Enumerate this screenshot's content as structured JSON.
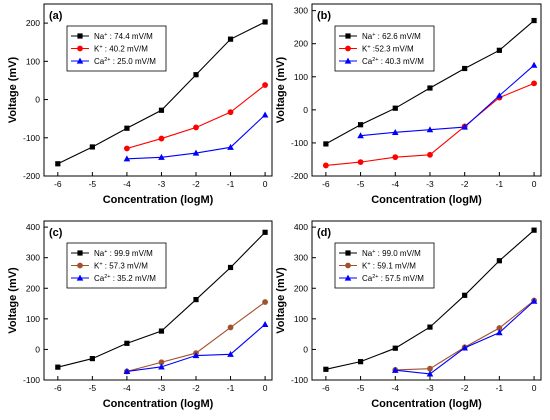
{
  "chart_data": [
    {
      "panel_label": "(a)",
      "type": "line",
      "xlabel": "Concentration (logM)",
      "ylabel": "Voltage (mV)",
      "xlim": [
        -6.4,
        0.2
      ],
      "ylim": [
        -200,
        250
      ],
      "xticks": [
        -6,
        -5,
        -4,
        -3,
        -2,
        -1,
        0
      ],
      "yticks": [
        -200,
        -100,
        0,
        100,
        200
      ],
      "legend_position": "top-left",
      "series": [
        {
          "ion": "Na",
          "charge": "+",
          "label_text": " : 74.4 mV/M",
          "color": "#000000",
          "marker": "square",
          "x": [
            -6,
            -5,
            -4,
            -3,
            -2,
            -1,
            0
          ],
          "y": [
            -168,
            -124,
            -75,
            -28,
            65,
            158,
            203
          ]
        },
        {
          "ion": "K",
          "charge": "+",
          "label_text": " : 40.2 mV/M",
          "color": "#ff0000",
          "marker": "circle",
          "x": [
            -4,
            -3,
            -2,
            -1,
            0
          ],
          "y": [
            -128,
            -102,
            -73,
            -33,
            38
          ]
        },
        {
          "ion": "Ca",
          "charge": "2+",
          "label_text": " : 25.0 mV/M",
          "color": "#0000ff",
          "marker": "triangle",
          "x": [
            -4,
            -3,
            -2,
            -1,
            0
          ],
          "y": [
            -155,
            -151,
            -140,
            -125,
            -40
          ]
        }
      ]
    },
    {
      "panel_label": "(b)",
      "type": "line",
      "xlabel": "Concentration (logM)",
      "ylabel": "Voltage (mV)",
      "xlim": [
        -6.4,
        0.2
      ],
      "ylim": [
        -200,
        320
      ],
      "xticks": [
        -6,
        -5,
        -4,
        -3,
        -2,
        -1,
        0
      ],
      "yticks": [
        -200,
        -100,
        0,
        100,
        200,
        300
      ],
      "legend_position": "top-left",
      "series": [
        {
          "ion": "Na",
          "charge": "+",
          "label_text": " : 62.6 mV/M",
          "color": "#000000",
          "marker": "square",
          "x": [
            -6,
            -5,
            -4,
            -3,
            -2,
            -1,
            0
          ],
          "y": [
            -103,
            -45,
            5,
            66,
            125,
            180,
            270
          ]
        },
        {
          "ion": "K",
          "charge": "+",
          "label_text": " :52.3 mV/M",
          "color": "#ff0000",
          "marker": "circle",
          "x": [
            -6,
            -5,
            -4,
            -3,
            -2,
            -1,
            0
          ],
          "y": [
            -168,
            -158,
            -143,
            -136,
            -50,
            37,
            80
          ]
        },
        {
          "ion": "Ca",
          "charge": "2+",
          "label_text": " : 40.3 mV/M",
          "color": "#0000ff",
          "marker": "triangle",
          "x": [
            -5,
            -4,
            -3,
            -2,
            -1,
            0
          ],
          "y": [
            -78,
            -68,
            -60,
            -52,
            43,
            135
          ]
        }
      ]
    },
    {
      "panel_label": "(c)",
      "type": "line",
      "xlabel": "Concentration (logM)",
      "ylabel": "Voltage (mV)",
      "xlim": [
        -6.4,
        0.2
      ],
      "ylim": [
        -100,
        420
      ],
      "xticks": [
        -6,
        -5,
        -4,
        -3,
        -2,
        -1,
        0
      ],
      "yticks": [
        -100,
        0,
        100,
        200,
        300,
        400
      ],
      "legend_position": "top-left",
      "series": [
        {
          "ion": "Na",
          "charge": "+",
          "label_text": " : 99.9 mV/M",
          "color": "#000000",
          "marker": "square",
          "x": [
            -6,
            -5,
            -4,
            -3,
            -2,
            -1,
            0
          ],
          "y": [
            -58,
            -30,
            20,
            60,
            163,
            268,
            383
          ]
        },
        {
          "ion": "K",
          "charge": "+",
          "label_text": " : 57.3 mV/M",
          "color": "#a0522d",
          "marker": "circle",
          "x": [
            -4,
            -3,
            -2,
            -1,
            0
          ],
          "y": [
            -72,
            -42,
            -12,
            72,
            155
          ]
        },
        {
          "ion": "Ca",
          "charge": "2+",
          "label_text": " : 35.2 mV/M",
          "color": "#0000ff",
          "marker": "triangle",
          "x": [
            -4,
            -3,
            -2,
            -1,
            0
          ],
          "y": [
            -72,
            -57,
            -20,
            -16,
            82
          ]
        }
      ]
    },
    {
      "panel_label": "(d)",
      "type": "line",
      "xlabel": "Concentration (logM)",
      "ylabel": "Voltage (mV)",
      "xlim": [
        -6.4,
        0.2
      ],
      "ylim": [
        -100,
        420
      ],
      "xticks": [
        -6,
        -5,
        -4,
        -3,
        -2,
        -1,
        0
      ],
      "yticks": [
        -100,
        0,
        100,
        200,
        300,
        400
      ],
      "legend_position": "top-left",
      "series": [
        {
          "ion": "Na",
          "charge": "+",
          "label_text": " : 99.0 mV/M",
          "color": "#000000",
          "marker": "square",
          "x": [
            -6,
            -5,
            -4,
            -3,
            -2,
            -1,
            0
          ],
          "y": [
            -65,
            -40,
            4,
            73,
            177,
            290,
            390
          ]
        },
        {
          "ion": "K",
          "charge": "+",
          "label_text": " : 59.1 mV/M",
          "color": "#a0522d",
          "marker": "circle",
          "x": [
            -4,
            -3,
            -2,
            -1,
            0
          ],
          "y": [
            -67,
            -63,
            7,
            70,
            160
          ]
        },
        {
          "ion": "Ca",
          "charge": "2+",
          "label_text": " : 57.5 mV/M",
          "color": "#0000ff",
          "marker": "triangle",
          "x": [
            -4,
            -3,
            -2,
            -1,
            0
          ],
          "y": [
            -68,
            -80,
            5,
            55,
            158
          ]
        }
      ]
    }
  ]
}
